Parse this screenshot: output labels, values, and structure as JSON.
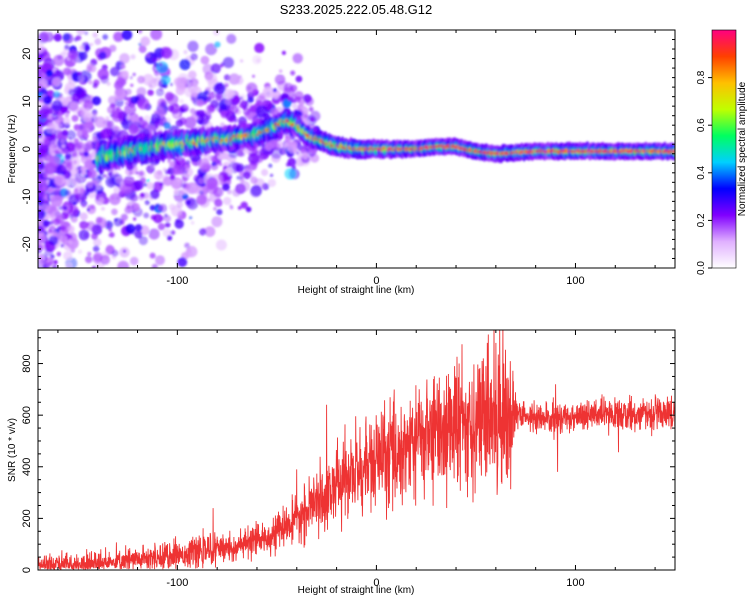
{
  "title": "S233.2025.222.05.48.G12",
  "chart_data": [
    {
      "type": "heatmap",
      "name": "spectrogram",
      "xlabel": "Height of straight line (km)",
      "ylabel": "Frequency (Hz)",
      "xlim": [
        -170,
        150
      ],
      "ylim": [
        -25,
        25
      ],
      "x_ticks": [
        -100,
        0,
        100
      ],
      "y_ticks": [
        -20,
        -10,
        0,
        10,
        20
      ],
      "ridge_center": [
        [
          -170,
          -2
        ],
        [
          -140,
          -2
        ],
        [
          -120,
          0
        ],
        [
          -100,
          1
        ],
        [
          -80,
          2
        ],
        [
          -60,
          3
        ],
        [
          -50,
          5
        ],
        [
          -45,
          6
        ],
        [
          -40,
          5
        ],
        [
          -35,
          3
        ],
        [
          -30,
          2
        ],
        [
          -20,
          0.5
        ],
        [
          -10,
          0
        ],
        [
          0,
          0
        ],
        [
          20,
          0
        ],
        [
          30,
          0.5
        ],
        [
          40,
          0.5
        ],
        [
          50,
          -0.5
        ],
        [
          60,
          -1
        ],
        [
          80,
          -0.5
        ],
        [
          100,
          -0.5
        ],
        [
          120,
          -0.5
        ],
        [
          150,
          -0.5
        ]
      ]
    },
    {
      "type": "colorbar",
      "name": "colorbar",
      "label": "Normalized spectral amplitude",
      "range": [
        0,
        1
      ],
      "ticks": [
        "0.0",
        "0.2",
        "0.4",
        "0.6",
        "0.8"
      ],
      "colors": [
        "#ffffff",
        "#e0b0ff",
        "#8000ff",
        "#0000ff",
        "#00d0ff",
        "#00ff60",
        "#c0ff00",
        "#ffc000",
        "#ff4000",
        "#ff0080"
      ]
    },
    {
      "type": "line",
      "name": "snr",
      "color": "#ee3333",
      "xlabel": "Height of straight line (km)",
      "ylabel": "SNR (10 * v/v)",
      "xlim": [
        -170,
        150
      ],
      "ylim": [
        0,
        930
      ],
      "x_ticks": [
        -100,
        0,
        100
      ],
      "y_ticks": [
        0,
        200,
        400,
        600,
        800
      ],
      "trend": [
        [
          -170,
          20
        ],
        [
          -140,
          25
        ],
        [
          -120,
          40
        ],
        [
          -100,
          60
        ],
        [
          -80,
          80
        ],
        [
          -70,
          90
        ],
        [
          -60,
          110
        ],
        [
          -50,
          150
        ],
        [
          -40,
          190
        ],
        [
          -30,
          260
        ],
        [
          -20,
          330
        ],
        [
          -10,
          380
        ],
        [
          0,
          420
        ],
        [
          10,
          460
        ],
        [
          20,
          500
        ],
        [
          30,
          540
        ],
        [
          40,
          560
        ],
        [
          50,
          580
        ],
        [
          60,
          600
        ],
        [
          70,
          600
        ],
        [
          80,
          590
        ],
        [
          90,
          580
        ],
        [
          100,
          600
        ],
        [
          120,
          600
        ],
        [
          150,
          610
        ]
      ],
      "spikes": [
        [
          -82,
          240
        ],
        [
          -40,
          390
        ],
        [
          -25,
          640
        ],
        [
          -10,
          460
        ],
        [
          -5,
          520
        ],
        [
          30,
          600
        ],
        [
          48,
          730
        ],
        [
          55,
          790
        ],
        [
          60,
          880
        ],
        [
          62,
          940
        ],
        [
          64,
          800
        ],
        [
          90,
          720
        ],
        [
          91,
          380
        ]
      ]
    }
  ]
}
